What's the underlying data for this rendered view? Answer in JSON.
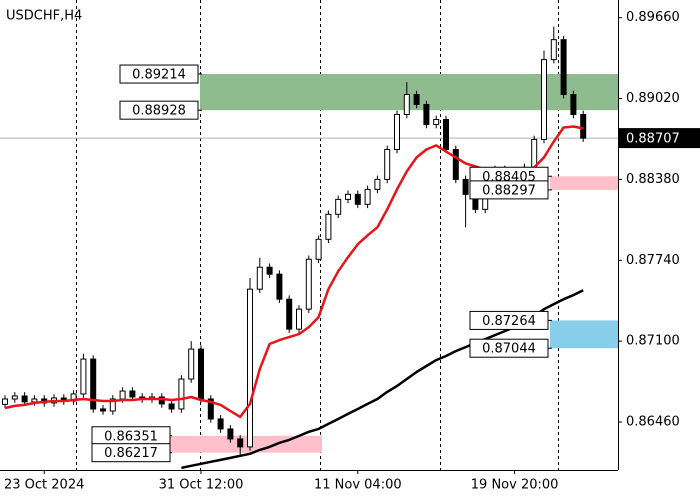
{
  "chart_data": {
    "type": "candlestick",
    "title": "USDCHF,H4",
    "categories": [
      null,
      null,
      null,
      null,
      "23 Oct 2024",
      null,
      null,
      null,
      null,
      null,
      null,
      null,
      null,
      null,
      null,
      null,
      null,
      null,
      null,
      null,
      "31 Oct 12:00",
      null,
      null,
      null,
      null,
      null,
      null,
      null,
      null,
      null,
      null,
      null,
      null,
      null,
      null,
      null,
      "11 Nov 04:00",
      null,
      null,
      null,
      null,
      null,
      null,
      null,
      null,
      null,
      null,
      null,
      null,
      null,
      null,
      null,
      "19 Nov 20:00",
      null,
      null,
      null,
      null,
      null,
      null,
      null
    ],
    "open": [
      0.866,
      0.86642,
      0.86666,
      0.86619,
      0.86642,
      0.86611,
      0.8665,
      0.86626,
      0.86682,
      0.86958,
      0.86563,
      0.86547,
      0.86642,
      0.86705,
      0.86658,
      0.86642,
      0.86658,
      0.86603,
      0.86563,
      0.868,
      0.87037,
      0.86642,
      0.86484,
      0.86405,
      0.86326,
      0.86263,
      0.87511,
      0.87685,
      0.8763,
      0.87432,
      0.87195,
      0.87353,
      0.87748,
      0.87906,
      0.88104,
      0.88222,
      0.88262,
      0.88183,
      0.88301,
      0.8838,
      0.88617,
      0.88894,
      0.89052,
      0.88973,
      0.88815,
      0.88854,
      0.88617,
      0.8838,
      0.88262,
      0.88143,
      0.8838,
      0.88459,
      0.8842,
      0.88443,
      0.88475,
      0.88696,
      0.89328,
      0.89486,
      0.89052,
      0.88894
    ],
    "high": [
      0.86672,
      0.86696,
      0.86696,
      0.86672,
      0.86672,
      0.8668,
      0.8668,
      0.86712,
      0.87,
      0.86988,
      0.86593,
      0.86672,
      0.86735,
      0.86735,
      0.86688,
      0.86688,
      0.86688,
      0.86633,
      0.8683,
      0.871,
      0.87067,
      0.86672,
      0.86514,
      0.86435,
      0.86356,
      0.876,
      0.8776,
      0.87715,
      0.8766,
      0.87462,
      0.87383,
      0.87778,
      0.87936,
      0.88134,
      0.88252,
      0.88292,
      0.88292,
      0.88331,
      0.8841,
      0.88647,
      0.88924,
      0.8915,
      0.89082,
      0.89003,
      0.88884,
      0.88884,
      0.88647,
      0.8841,
      0.88292,
      0.8841,
      0.88489,
      0.88489,
      0.88473,
      0.88505,
      0.88726,
      0.894,
      0.8959,
      0.89516,
      0.89082,
      0.88924
    ],
    "low": [
      0.8657,
      0.86612,
      0.86589,
      0.86589,
      0.86581,
      0.86581,
      0.86596,
      0.86596,
      0.86652,
      0.86533,
      0.86517,
      0.86517,
      0.86612,
      0.86628,
      0.86612,
      0.86612,
      0.86573,
      0.86533,
      0.86533,
      0.8677,
      0.86612,
      0.86454,
      0.86375,
      0.86296,
      0.862,
      0.86233,
      0.87481,
      0.876,
      0.87402,
      0.87165,
      0.87165,
      0.87323,
      0.87718,
      0.87876,
      0.88074,
      0.88192,
      0.88153,
      0.88153,
      0.88271,
      0.8835,
      0.88587,
      0.88864,
      0.88943,
      0.88785,
      0.88785,
      0.88587,
      0.8835,
      0.88,
      0.88113,
      0.88113,
      0.8835,
      0.8839,
      0.8839,
      0.88413,
      0.88445,
      0.88666,
      0.89298,
      0.89022,
      0.88864,
      0.88677
    ],
    "close": [
      0.86642,
      0.86666,
      0.86619,
      0.86642,
      0.86611,
      0.8665,
      0.86626,
      0.86682,
      0.86958,
      0.86563,
      0.86547,
      0.86642,
      0.86705,
      0.86658,
      0.86642,
      0.86658,
      0.86603,
      0.86563,
      0.868,
      0.87037,
      0.86642,
      0.86484,
      0.86405,
      0.86326,
      0.86263,
      0.87511,
      0.87685,
      0.8763,
      0.87432,
      0.87195,
      0.87353,
      0.87748,
      0.87906,
      0.88104,
      0.88222,
      0.88262,
      0.88183,
      0.88301,
      0.8838,
      0.88617,
      0.88894,
      0.89052,
      0.88973,
      0.88815,
      0.88854,
      0.88617,
      0.8838,
      0.88262,
      0.88143,
      0.8838,
      0.88459,
      0.8842,
      0.88443,
      0.88475,
      0.88696,
      0.89328,
      0.89486,
      0.89052,
      0.88894,
      0.88707
    ],
    "up_color": "#ffffff",
    "down_color": "#000000",
    "series": [
      {
        "color": "#e8141b",
        "values": [
          0.86571,
          0.86587,
          0.86595,
          0.86611,
          0.86619,
          0.86626,
          0.86626,
          0.86634,
          0.86642,
          0.86634,
          0.86626,
          0.86626,
          0.86634,
          0.86634,
          0.86642,
          0.86642,
          0.86642,
          0.86634,
          0.86642,
          0.86658,
          0.86634,
          0.86619,
          0.86595,
          0.86547,
          0.865,
          0.86603,
          0.86879,
          0.87077,
          0.87108,
          0.87132,
          0.87156,
          0.87211,
          0.8729,
          0.87511,
          0.87653,
          0.87764,
          0.87867,
          0.87938,
          0.88001,
          0.88143,
          0.88301,
          0.88443,
          0.88554,
          0.88617,
          0.88649,
          0.88601,
          0.88554,
          0.88507,
          0.88483,
          0.88459,
          0.88443,
          0.88428,
          0.8842,
          0.88436,
          0.88475,
          0.88554,
          0.8868,
          0.88791,
          0.88799,
          0.88783
        ]
      },
      {
        "color": "#000000",
        "values": [
          null,
          null,
          null,
          null,
          null,
          null,
          null,
          null,
          null,
          null,
          null,
          null,
          null,
          null,
          null,
          null,
          null,
          null,
          0.86097,
          0.86113,
          0.86129,
          0.86145,
          0.8616,
          0.86176,
          0.86192,
          0.86208,
          0.86239,
          0.86263,
          0.86295,
          0.86318,
          0.8635,
          0.86382,
          0.86405,
          0.86445,
          0.86484,
          0.86524,
          0.86563,
          0.86603,
          0.86642,
          0.86698,
          0.86745,
          0.868,
          0.86856,
          0.86903,
          0.8695,
          0.86982,
          0.87021,
          0.87053,
          0.87085,
          0.87116,
          0.87148,
          0.87179,
          0.87211,
          0.87251,
          0.87298,
          0.87353,
          0.87393,
          0.87432,
          0.87464,
          0.87503
        ]
      }
    ],
    "zones": [
      {
        "high": 0.89214,
        "low": 0.88928,
        "color": "#8fbc8f"
      },
      {
        "high": 0.88405,
        "low": 0.88297,
        "color": "#ffc0cb"
      },
      {
        "high": 0.87264,
        "low": 0.87044,
        "color": "#87ceeb"
      },
      {
        "high": 0.86351,
        "low": 0.86217,
        "color": "#ffc0cb"
      }
    ],
    "current_price": 0.88707,
    "ylim": [
      0.8608,
      0.898
    ],
    "yticks": [
      {
        "value": 0.8966,
        "label": "0.89660"
      },
      {
        "value": 0.8902,
        "label": "0.89020"
      },
      {
        "value": 0.8838,
        "label": "0.88380"
      },
      {
        "value": 0.8774,
        "label": "0.87740"
      },
      {
        "value": 0.871,
        "label": "0.87100"
      },
      {
        "value": 0.8646,
        "label": "0.86460"
      }
    ]
  }
}
